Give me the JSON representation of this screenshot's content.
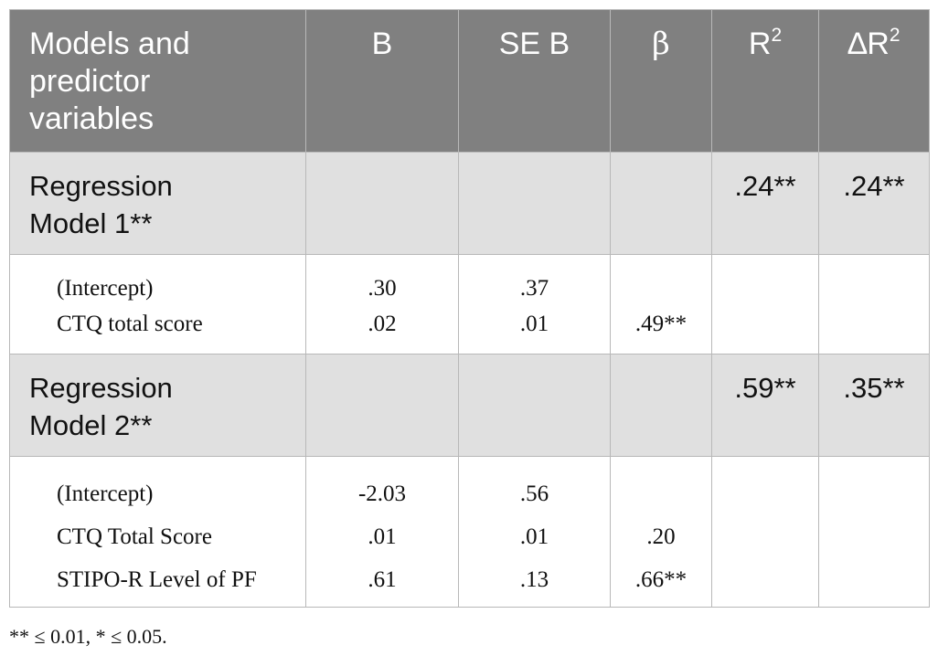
{
  "table": {
    "header": {
      "col0": "Models and predictor variables",
      "col1": "B",
      "col2": "SE B",
      "col3": "β",
      "col4_base": "R",
      "col4_sup": "2",
      "col5_base": "∆R",
      "col5_sup": "2"
    },
    "model1": {
      "label": "Regression Model 1**",
      "r2": ".24**",
      "dr2": ".24**",
      "predictors": [
        "(Intercept)",
        "CTQ total score"
      ],
      "b": [
        ".30",
        ".02"
      ],
      "se_b": [
        ".37",
        ".01"
      ],
      "beta": [
        "",
        ".49**"
      ]
    },
    "model2": {
      "label": "Regression Model 2**",
      "r2": ".59**",
      "dr2": ".35**",
      "predictors": [
        "(Intercept)",
        "CTQ Total Score",
        "STIPO-R Level of PF"
      ],
      "b": [
        "-2.03",
        ".01",
        ".61"
      ],
      "se_b": [
        ".56",
        ".01",
        ".13"
      ],
      "beta": [
        "",
        ".20",
        ".66**"
      ]
    }
  },
  "footnote": "** ≤ 0.01, * ≤ 0.05."
}
